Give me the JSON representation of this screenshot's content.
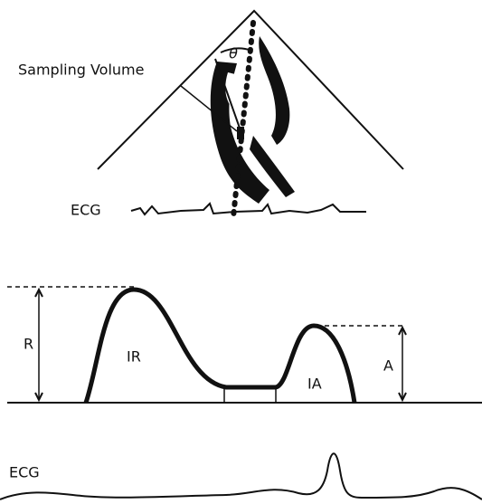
{
  "echo_panel": {
    "sampling_label": "Sampling Volume",
    "angle_label": "θ",
    "ecg_label": "ECG"
  },
  "doppler_panel": {
    "r_label": "R",
    "ir_label": "IR",
    "ia_label": "IA",
    "a_label": "A",
    "ecg_label": "ECG"
  }
}
